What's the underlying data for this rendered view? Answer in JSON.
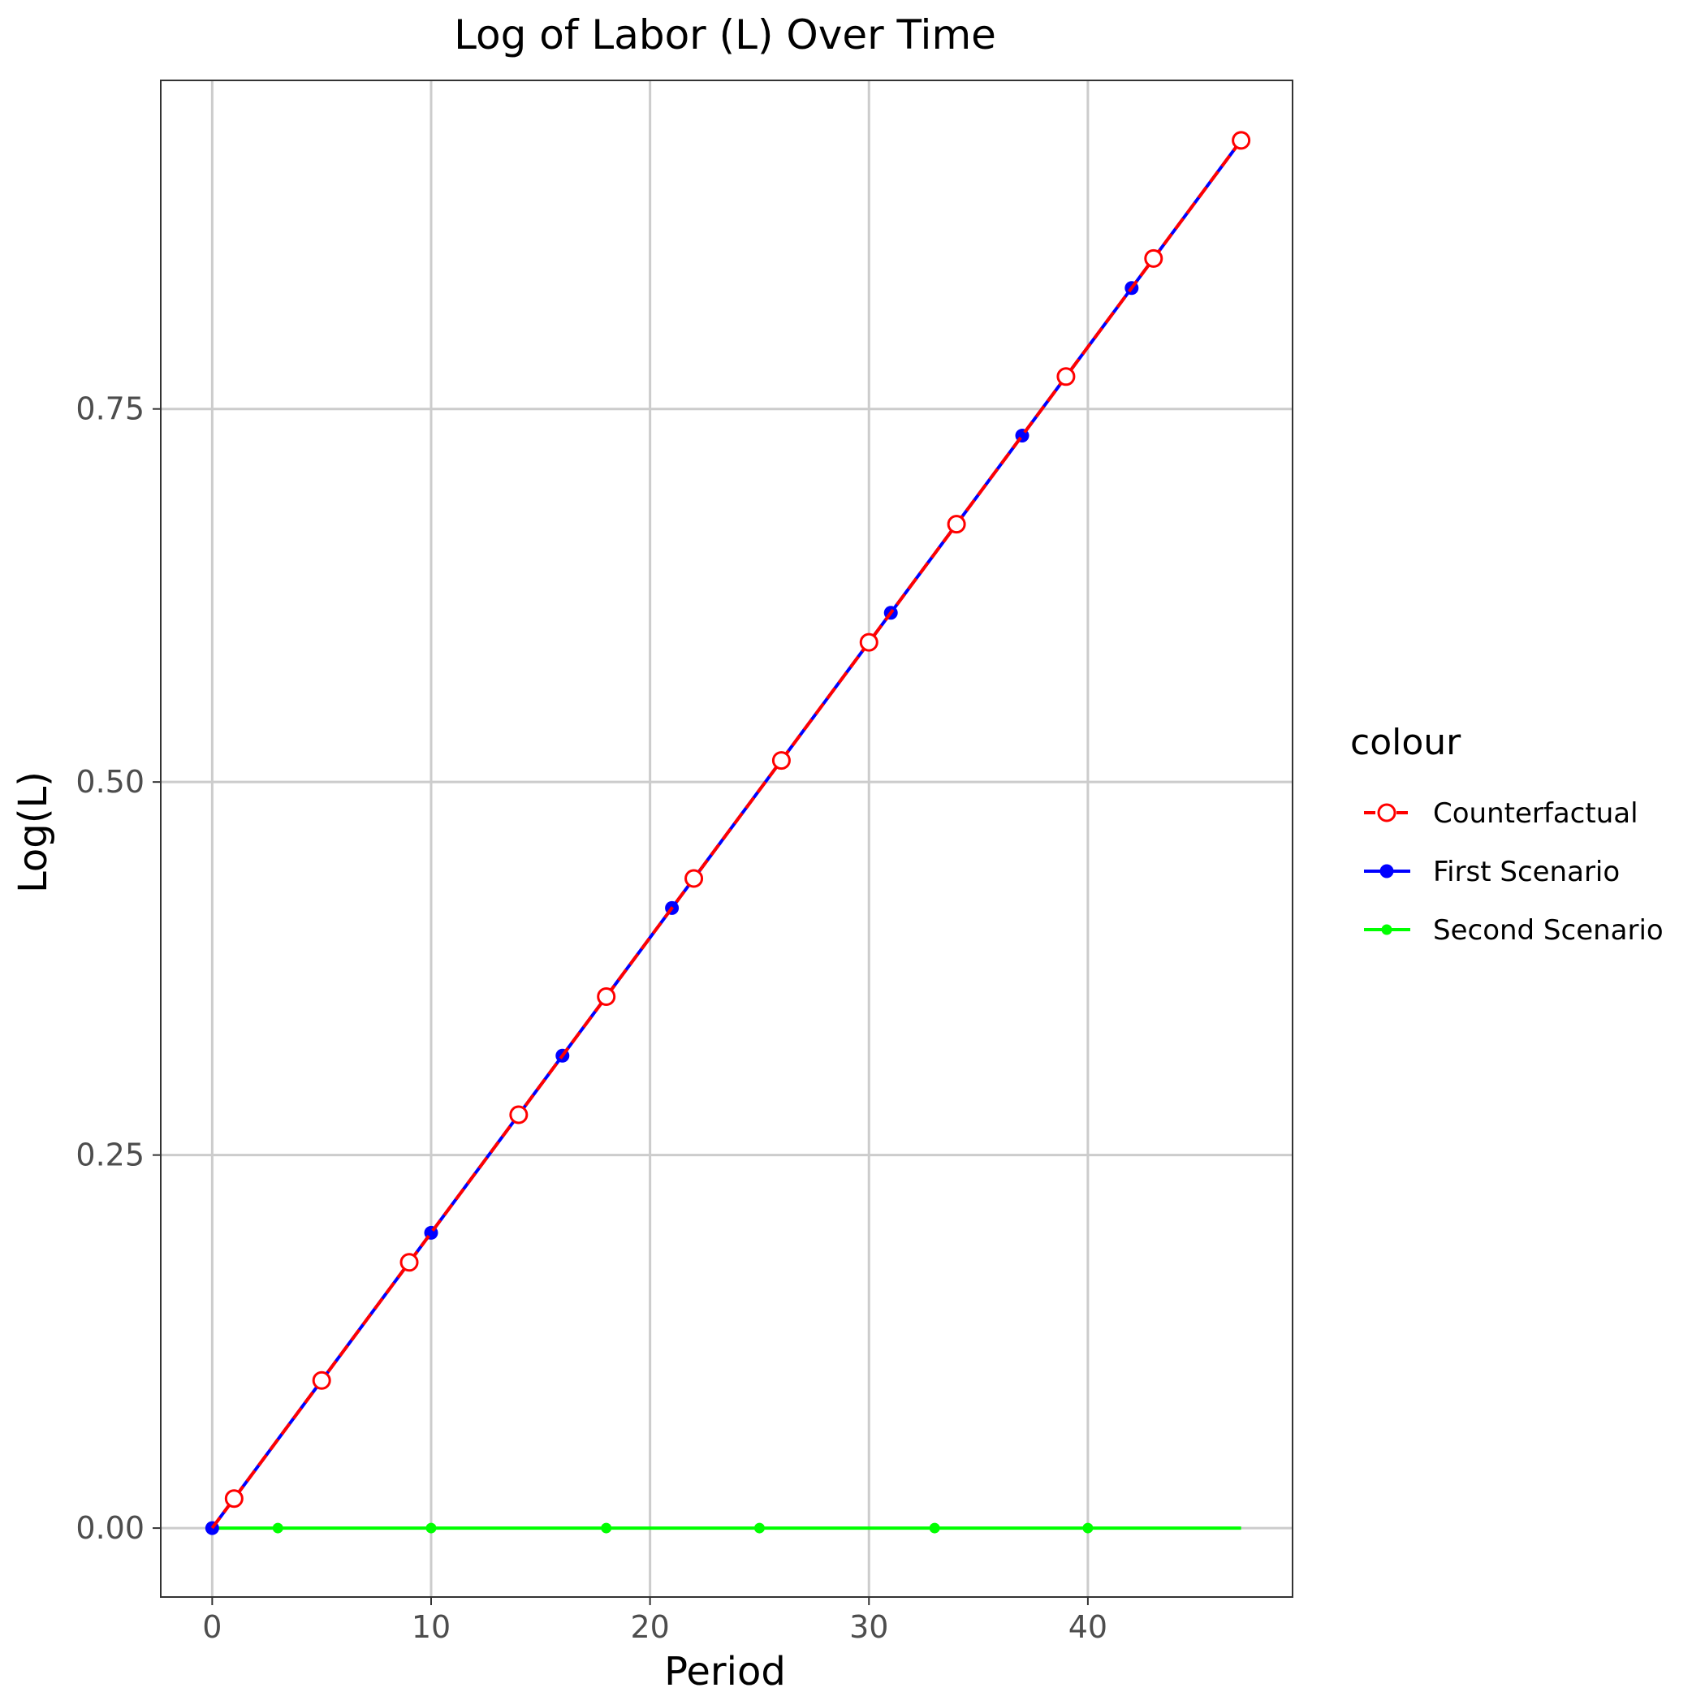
{
  "chart_data": {
    "type": "line",
    "title": "Log of Labor (L) Over Time",
    "xlabel": "Period",
    "ylabel": "Log(L)",
    "xlim": [
      -2.35,
      49.35
    ],
    "ylim": [
      -0.0462,
      0.9702
    ],
    "x_ticks": [
      0,
      10,
      20,
      30,
      40
    ],
    "x_tick_labels": [
      "0",
      "10",
      "20",
      "30",
      "40"
    ],
    "y_ticks": [
      0.0,
      0.25,
      0.5,
      0.75
    ],
    "y_tick_labels": [
      "0.00",
      "0.25",
      "0.50",
      "0.75"
    ],
    "grid": true,
    "legend": {
      "title": "colour",
      "position": "right"
    },
    "series": [
      {
        "name": "Counterfactual",
        "color": "#ff0000",
        "line_style": "dashed",
        "marker": "open-circle",
        "x": [
          0,
          47
        ],
        "y": [
          0.0,
          0.93
        ],
        "marker_x": [
          1,
          5,
          9,
          14,
          18,
          22,
          26,
          30,
          34,
          39,
          43,
          47
        ]
      },
      {
        "name": "First Scenario",
        "color": "#0000ff",
        "line_style": "solid",
        "marker": "filled-circle",
        "x": [
          0,
          47
        ],
        "y": [
          0.0,
          0.93
        ],
        "marker_x": [
          0,
          5,
          10,
          16,
          21,
          26,
          31,
          37,
          42,
          47
        ]
      },
      {
        "name": "Second Scenario",
        "color": "#00ff00",
        "line_style": "solid",
        "marker": "small-filled-circle",
        "x": [
          0,
          47
        ],
        "y": [
          0.0,
          0.0
        ],
        "marker_x": [
          3,
          10,
          18,
          25,
          33,
          40
        ]
      }
    ]
  }
}
